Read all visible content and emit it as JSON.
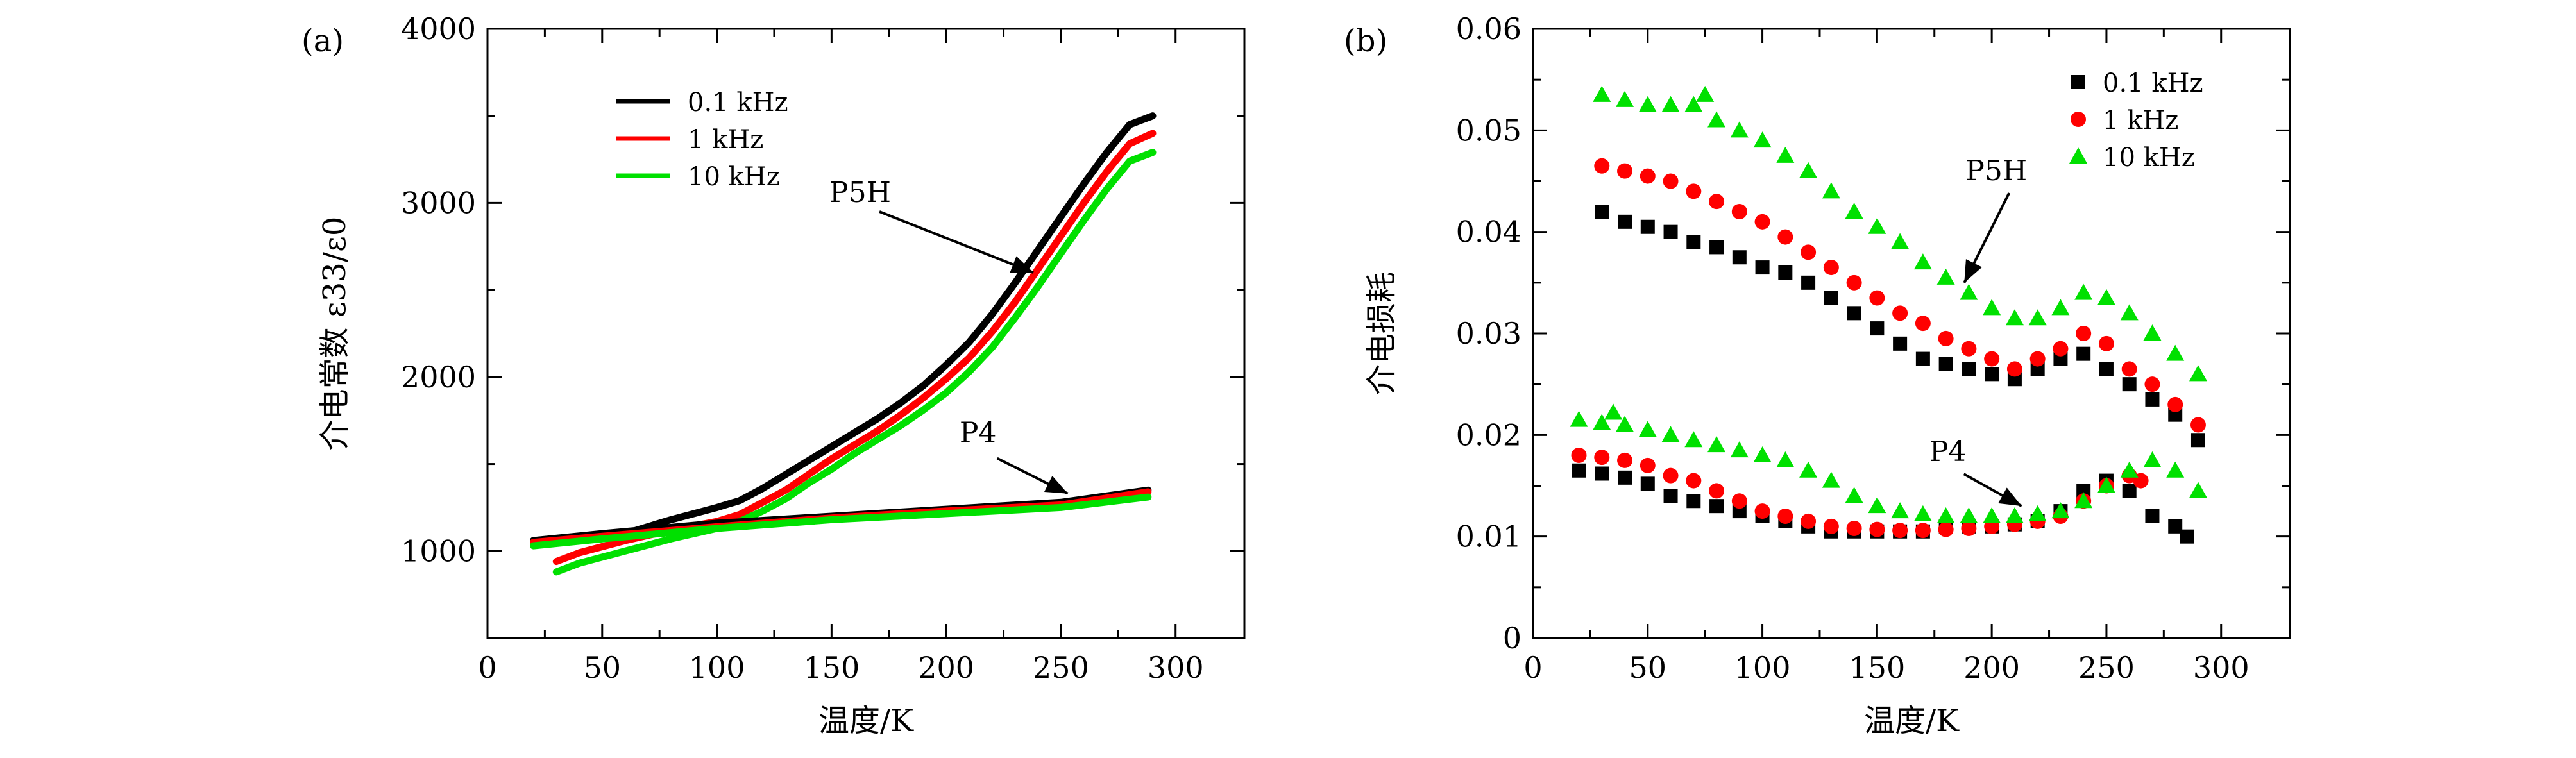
{
  "chart_data": [
    {
      "panel_label": "(a)",
      "type": "line",
      "xlabel": "温度/K",
      "ylabel": "介电常数 ε33/ε0",
      "xlim": [
        0,
        330
      ],
      "ylim": [
        500,
        4000
      ],
      "x_ticks": [
        0,
        50,
        100,
        150,
        200,
        250,
        300
      ],
      "y_ticks": [
        1000,
        2000,
        3000,
        4000
      ],
      "legend": [
        "0.1 kHz",
        "1 kHz",
        "10 kHz"
      ],
      "legend_position": "top-left",
      "colors": {
        "0.1 kHz": "#000000",
        "1 kHz": "#ff0000",
        "10 kHz": "#00e000"
      },
      "annotations": [
        {
          "text": "P5H",
          "arrow_to": [
            238,
            2600
          ]
        },
        {
          "text": "P4",
          "arrow_to": [
            253,
            1330
          ]
        }
      ],
      "series": [
        {
          "name": "0.1 kHz",
          "sample": "P5H",
          "x": [
            20,
            40,
            60,
            80,
            100,
            110,
            120,
            130,
            140,
            150,
            160,
            170,
            180,
            190,
            200,
            210,
            220,
            230,
            240,
            250,
            260,
            270,
            280,
            290
          ],
          "y": [
            1060,
            1080,
            1100,
            1180,
            1250,
            1290,
            1360,
            1440,
            1520,
            1600,
            1680,
            1760,
            1850,
            1950,
            2070,
            2200,
            2360,
            2540,
            2730,
            2920,
            3110,
            3290,
            3450,
            3500
          ]
        },
        {
          "name": "1 kHz",
          "sample": "P5H",
          "x": [
            30,
            40,
            60,
            80,
            100,
            110,
            120,
            130,
            140,
            150,
            160,
            170,
            180,
            190,
            200,
            210,
            220,
            230,
            240,
            250,
            260,
            270,
            280,
            290
          ],
          "y": [
            940,
            990,
            1060,
            1120,
            1170,
            1210,
            1280,
            1350,
            1440,
            1530,
            1610,
            1690,
            1780,
            1880,
            1990,
            2110,
            2260,
            2430,
            2620,
            2810,
            3000,
            3180,
            3340,
            3400
          ]
        },
        {
          "name": "10 kHz",
          "sample": "P5H",
          "x": [
            30,
            40,
            60,
            80,
            100,
            110,
            120,
            130,
            140,
            150,
            160,
            170,
            180,
            190,
            200,
            210,
            220,
            230,
            240,
            250,
            260,
            270,
            280,
            290
          ],
          "y": [
            880,
            930,
            1000,
            1070,
            1130,
            1170,
            1230,
            1300,
            1390,
            1470,
            1560,
            1640,
            1720,
            1810,
            1910,
            2030,
            2170,
            2340,
            2520,
            2710,
            2900,
            3080,
            3240,
            3290
          ]
        },
        {
          "name": "0.1 kHz",
          "sample": "P4",
          "x": [
            20,
            50,
            100,
            150,
            200,
            250,
            288
          ],
          "y": [
            1060,
            1100,
            1160,
            1200,
            1240,
            1280,
            1350
          ]
        },
        {
          "name": "1 kHz",
          "sample": "P4",
          "x": [
            20,
            50,
            100,
            150,
            200,
            250,
            288
          ],
          "y": [
            1050,
            1085,
            1140,
            1190,
            1230,
            1265,
            1340
          ]
        },
        {
          "name": "10 kHz",
          "sample": "P4",
          "x": [
            20,
            50,
            100,
            150,
            200,
            250,
            288
          ],
          "y": [
            1030,
            1070,
            1130,
            1180,
            1215,
            1250,
            1310
          ]
        }
      ]
    },
    {
      "panel_label": "(b)",
      "type": "scatter",
      "xlabel": "温度/K",
      "ylabel": "介电损耗",
      "xlim": [
        0,
        330
      ],
      "ylim": [
        0,
        0.06
      ],
      "x_ticks": [
        0,
        50,
        100,
        150,
        200,
        250,
        300
      ],
      "y_ticks": [
        "0",
        "0.01",
        "0.02",
        "0.03",
        "0.04",
        "0.05",
        "0.06"
      ],
      "legend": [
        "0.1 kHz",
        "1 kHz",
        "10 kHz"
      ],
      "legend_position": "top-right",
      "colors": {
        "0.1 kHz": "#000000",
        "1 kHz": "#ff0000",
        "10 kHz": "#00e000"
      },
      "markers": {
        "0.1 kHz": "square",
        "1 kHz": "circle",
        "10 kHz": "triangle"
      },
      "annotations": [
        {
          "text": "P5H",
          "arrow_to": [
            188,
            0.035
          ]
        },
        {
          "text": "P4",
          "arrow_to": [
            213,
            0.013
          ]
        }
      ],
      "series": [
        {
          "name": "0.1 kHz",
          "sample": "P5H",
          "x": [
            30,
            40,
            50,
            60,
            70,
            80,
            90,
            100,
            110,
            120,
            130,
            140,
            150,
            160,
            170,
            180,
            190,
            200,
            210,
            220,
            230,
            240,
            250,
            260,
            270,
            280,
            290
          ],
          "y": [
            0.042,
            0.041,
            0.0405,
            0.04,
            0.039,
            0.0385,
            0.0375,
            0.0365,
            0.036,
            0.035,
            0.0335,
            0.032,
            0.0305,
            0.029,
            0.0275,
            0.027,
            0.0265,
            0.026,
            0.0255,
            0.0265,
            0.0275,
            0.028,
            0.0265,
            0.025,
            0.0235,
            0.022,
            0.0195
          ]
        },
        {
          "name": "1 kHz",
          "sample": "P5H",
          "x": [
            30,
            40,
            50,
            60,
            70,
            80,
            90,
            100,
            110,
            120,
            130,
            140,
            150,
            160,
            170,
            180,
            190,
            200,
            210,
            220,
            230,
            240,
            250,
            260,
            270,
            280,
            290
          ],
          "y": [
            0.0465,
            0.046,
            0.0455,
            0.045,
            0.044,
            0.043,
            0.042,
            0.041,
            0.0395,
            0.038,
            0.0365,
            0.035,
            0.0335,
            0.032,
            0.031,
            0.0295,
            0.0285,
            0.0275,
            0.0265,
            0.0275,
            0.0285,
            0.03,
            0.029,
            0.0265,
            0.025,
            0.023,
            0.021
          ]
        },
        {
          "name": "10 kHz",
          "sample": "P5H",
          "x": [
            30,
            40,
            50,
            60,
            70,
            75,
            80,
            90,
            100,
            110,
            120,
            130,
            140,
            150,
            160,
            170,
            180,
            190,
            200,
            210,
            220,
            230,
            240,
            250,
            260,
            270,
            280,
            290
          ],
          "y": [
            0.0535,
            0.053,
            0.0525,
            0.0525,
            0.0525,
            0.0535,
            0.051,
            0.05,
            0.049,
            0.0475,
            0.046,
            0.044,
            0.042,
            0.0405,
            0.039,
            0.037,
            0.0355,
            0.034,
            0.0325,
            0.0315,
            0.0315,
            0.0325,
            0.034,
            0.0335,
            0.032,
            0.03,
            0.028,
            0.026
          ]
        },
        {
          "name": "0.1 kHz",
          "sample": "P4",
          "x": [
            20,
            30,
            40,
            50,
            60,
            70,
            80,
            90,
            100,
            110,
            120,
            130,
            140,
            150,
            160,
            170,
            180,
            190,
            200,
            210,
            220,
            230,
            240,
            250,
            260,
            270,
            280,
            285
          ],
          "y": [
            0.0165,
            0.0162,
            0.0158,
            0.0152,
            0.014,
            0.0135,
            0.013,
            0.0125,
            0.012,
            0.0115,
            0.011,
            0.0105,
            0.0105,
            0.0105,
            0.0105,
            0.0105,
            0.011,
            0.011,
            0.011,
            0.0112,
            0.0115,
            0.0125,
            0.0145,
            0.0155,
            0.0145,
            0.012,
            0.011,
            0.01
          ]
        },
        {
          "name": "1 kHz",
          "sample": "P4",
          "x": [
            20,
            30,
            40,
            50,
            60,
            70,
            80,
            90,
            100,
            110,
            120,
            130,
            140,
            150,
            160,
            170,
            180,
            190,
            200,
            210,
            220,
            230,
            240,
            250,
            260,
            265
          ],
          "y": [
            0.018,
            0.0178,
            0.0175,
            0.017,
            0.016,
            0.0155,
            0.0145,
            0.0135,
            0.0125,
            0.012,
            0.0115,
            0.011,
            0.0108,
            0.0107,
            0.0106,
            0.0106,
            0.0107,
            0.0108,
            0.011,
            0.0112,
            0.0115,
            0.012,
            0.0135,
            0.015,
            0.016,
            0.0155
          ]
        },
        {
          "name": "10 kHz",
          "sample": "P4",
          "x": [
            20,
            30,
            35,
            40,
            50,
            60,
            70,
            80,
            90,
            100,
            110,
            120,
            130,
            140,
            150,
            160,
            170,
            180,
            190,
            200,
            210,
            220,
            230,
            240,
            250,
            260,
            270,
            280,
            290
          ],
          "y": [
            0.0215,
            0.0212,
            0.0222,
            0.021,
            0.0205,
            0.02,
            0.0195,
            0.019,
            0.0185,
            0.018,
            0.0175,
            0.0165,
            0.0155,
            0.014,
            0.013,
            0.0125,
            0.0122,
            0.012,
            0.012,
            0.012,
            0.012,
            0.0122,
            0.0125,
            0.0135,
            0.015,
            0.0165,
            0.0175,
            0.0165,
            0.0145
          ]
        }
      ]
    }
  ]
}
